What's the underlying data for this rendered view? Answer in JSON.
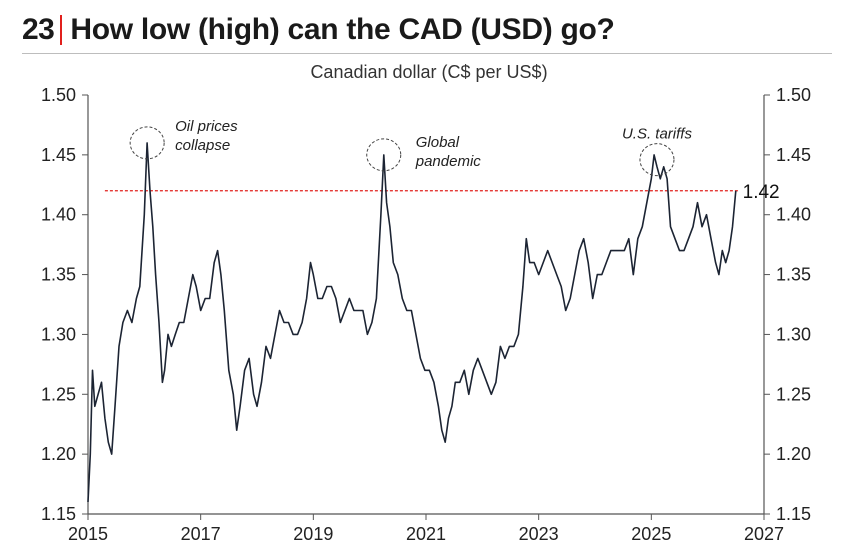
{
  "header": {
    "slide_number": "23",
    "title": "How low (high) can the CAD (USD) go?"
  },
  "chart_data": {
    "type": "line",
    "title": "Canadian dollar (C$ per US$)",
    "xlabel": "",
    "ylabel": "",
    "xlim": [
      2015,
      2027
    ],
    "ylim": [
      1.15,
      1.5
    ],
    "x_ticks": [
      "2015",
      "2017",
      "2019",
      "2021",
      "2023",
      "2025",
      "2027"
    ],
    "y_ticks": [
      "1.15",
      "1.20",
      "1.25",
      "1.30",
      "1.35",
      "1.40",
      "1.45",
      "1.50"
    ],
    "y_axis_sides": [
      "left",
      "right"
    ],
    "grid": false,
    "line_color": "#1c2433",
    "reference_line": {
      "value": 1.42,
      "label": "1.42",
      "color": "#e1201d",
      "style": "dashed"
    },
    "annotations": [
      {
        "text_lines": [
          "Oil prices",
          "collapse"
        ],
        "x": 2016.05,
        "y": 1.46
      },
      {
        "text_lines": [
          "Global",
          "pandemic"
        ],
        "x": 2020.25,
        "y": 1.45
      },
      {
        "text_lines": [
          "U.S. tariffs"
        ],
        "x": 2025.1,
        "y": 1.446
      }
    ],
    "series": [
      {
        "points": [
          [
            2015.0,
            1.16
          ],
          [
            2015.04,
            1.2
          ],
          [
            2015.08,
            1.27
          ],
          [
            2015.12,
            1.24
          ],
          [
            2015.18,
            1.25
          ],
          [
            2015.24,
            1.26
          ],
          [
            2015.3,
            1.23
          ],
          [
            2015.36,
            1.21
          ],
          [
            2015.42,
            1.2
          ],
          [
            2015.48,
            1.24
          ],
          [
            2015.55,
            1.29
          ],
          [
            2015.62,
            1.31
          ],
          [
            2015.7,
            1.32
          ],
          [
            2015.78,
            1.31
          ],
          [
            2015.86,
            1.33
          ],
          [
            2015.92,
            1.34
          ],
          [
            2016.0,
            1.4
          ],
          [
            2016.05,
            1.46
          ],
          [
            2016.1,
            1.42
          ],
          [
            2016.15,
            1.39
          ],
          [
            2016.2,
            1.35
          ],
          [
            2016.26,
            1.31
          ],
          [
            2016.32,
            1.26
          ],
          [
            2016.36,
            1.27
          ],
          [
            2016.42,
            1.3
          ],
          [
            2016.48,
            1.29
          ],
          [
            2016.55,
            1.3
          ],
          [
            2016.62,
            1.31
          ],
          [
            2016.7,
            1.31
          ],
          [
            2016.78,
            1.33
          ],
          [
            2016.86,
            1.35
          ],
          [
            2016.92,
            1.34
          ],
          [
            2017.0,
            1.32
          ],
          [
            2017.08,
            1.33
          ],
          [
            2017.16,
            1.33
          ],
          [
            2017.24,
            1.36
          ],
          [
            2017.3,
            1.37
          ],
          [
            2017.36,
            1.35
          ],
          [
            2017.42,
            1.32
          ],
          [
            2017.5,
            1.27
          ],
          [
            2017.58,
            1.25
          ],
          [
            2017.64,
            1.22
          ],
          [
            2017.7,
            1.24
          ],
          [
            2017.78,
            1.27
          ],
          [
            2017.86,
            1.28
          ],
          [
            2017.94,
            1.25
          ],
          [
            2018.0,
            1.24
          ],
          [
            2018.08,
            1.26
          ],
          [
            2018.16,
            1.29
          ],
          [
            2018.24,
            1.28
          ],
          [
            2018.32,
            1.3
          ],
          [
            2018.4,
            1.32
          ],
          [
            2018.48,
            1.31
          ],
          [
            2018.56,
            1.31
          ],
          [
            2018.64,
            1.3
          ],
          [
            2018.72,
            1.3
          ],
          [
            2018.8,
            1.31
          ],
          [
            2018.88,
            1.33
          ],
          [
            2018.95,
            1.36
          ],
          [
            2019.0,
            1.35
          ],
          [
            2019.08,
            1.33
          ],
          [
            2019.16,
            1.33
          ],
          [
            2019.24,
            1.34
          ],
          [
            2019.32,
            1.34
          ],
          [
            2019.4,
            1.33
          ],
          [
            2019.48,
            1.31
          ],
          [
            2019.56,
            1.32
          ],
          [
            2019.64,
            1.33
          ],
          [
            2019.72,
            1.32
          ],
          [
            2019.8,
            1.32
          ],
          [
            2019.88,
            1.32
          ],
          [
            2019.96,
            1.3
          ],
          [
            2020.04,
            1.31
          ],
          [
            2020.12,
            1.33
          ],
          [
            2020.2,
            1.4
          ],
          [
            2020.25,
            1.45
          ],
          [
            2020.3,
            1.41
          ],
          [
            2020.36,
            1.39
          ],
          [
            2020.42,
            1.36
          ],
          [
            2020.5,
            1.35
          ],
          [
            2020.58,
            1.33
          ],
          [
            2020.66,
            1.32
          ],
          [
            2020.74,
            1.32
          ],
          [
            2020.82,
            1.3
          ],
          [
            2020.9,
            1.28
          ],
          [
            2020.98,
            1.27
          ],
          [
            2021.06,
            1.27
          ],
          [
            2021.14,
            1.26
          ],
          [
            2021.22,
            1.24
          ],
          [
            2021.28,
            1.22
          ],
          [
            2021.34,
            1.21
          ],
          [
            2021.4,
            1.23
          ],
          [
            2021.46,
            1.24
          ],
          [
            2021.52,
            1.26
          ],
          [
            2021.6,
            1.26
          ],
          [
            2021.68,
            1.27
          ],
          [
            2021.76,
            1.25
          ],
          [
            2021.84,
            1.27
          ],
          [
            2021.92,
            1.28
          ],
          [
            2022.0,
            1.27
          ],
          [
            2022.08,
            1.26
          ],
          [
            2022.16,
            1.25
          ],
          [
            2022.24,
            1.26
          ],
          [
            2022.32,
            1.29
          ],
          [
            2022.4,
            1.28
          ],
          [
            2022.48,
            1.29
          ],
          [
            2022.56,
            1.29
          ],
          [
            2022.64,
            1.3
          ],
          [
            2022.72,
            1.34
          ],
          [
            2022.78,
            1.38
          ],
          [
            2022.84,
            1.36
          ],
          [
            2022.92,
            1.36
          ],
          [
            2023.0,
            1.35
          ],
          [
            2023.08,
            1.36
          ],
          [
            2023.16,
            1.37
          ],
          [
            2023.24,
            1.36
          ],
          [
            2023.32,
            1.35
          ],
          [
            2023.4,
            1.34
          ],
          [
            2023.48,
            1.32
          ],
          [
            2023.56,
            1.33
          ],
          [
            2023.64,
            1.35
          ],
          [
            2023.72,
            1.37
          ],
          [
            2023.8,
            1.38
          ],
          [
            2023.88,
            1.36
          ],
          [
            2023.96,
            1.33
          ],
          [
            2024.04,
            1.35
          ],
          [
            2024.12,
            1.35
          ],
          [
            2024.2,
            1.36
          ],
          [
            2024.28,
            1.37
          ],
          [
            2024.36,
            1.37
          ],
          [
            2024.44,
            1.37
          ],
          [
            2024.52,
            1.37
          ],
          [
            2024.6,
            1.38
          ],
          [
            2024.68,
            1.35
          ],
          [
            2024.76,
            1.38
          ],
          [
            2024.84,
            1.39
          ],
          [
            2024.92,
            1.41
          ],
          [
            2025.0,
            1.43
          ],
          [
            2025.05,
            1.45
          ],
          [
            2025.1,
            1.44
          ],
          [
            2025.16,
            1.43
          ],
          [
            2025.22,
            1.44
          ],
          [
            2025.28,
            1.43
          ],
          [
            2025.34,
            1.39
          ],
          [
            2025.42,
            1.38
          ],
          [
            2025.5,
            1.37
          ],
          [
            2025.58,
            1.37
          ],
          [
            2025.66,
            1.38
          ],
          [
            2025.74,
            1.39
          ],
          [
            2025.82,
            1.41
          ],
          [
            2025.9,
            1.39
          ],
          [
            2025.98,
            1.4
          ],
          [
            2026.06,
            1.38
          ],
          [
            2026.14,
            1.36
          ],
          [
            2026.2,
            1.35
          ],
          [
            2026.26,
            1.37
          ],
          [
            2026.32,
            1.36
          ],
          [
            2026.38,
            1.37
          ],
          [
            2026.44,
            1.39
          ],
          [
            2026.5,
            1.42
          ]
        ]
      }
    ]
  }
}
